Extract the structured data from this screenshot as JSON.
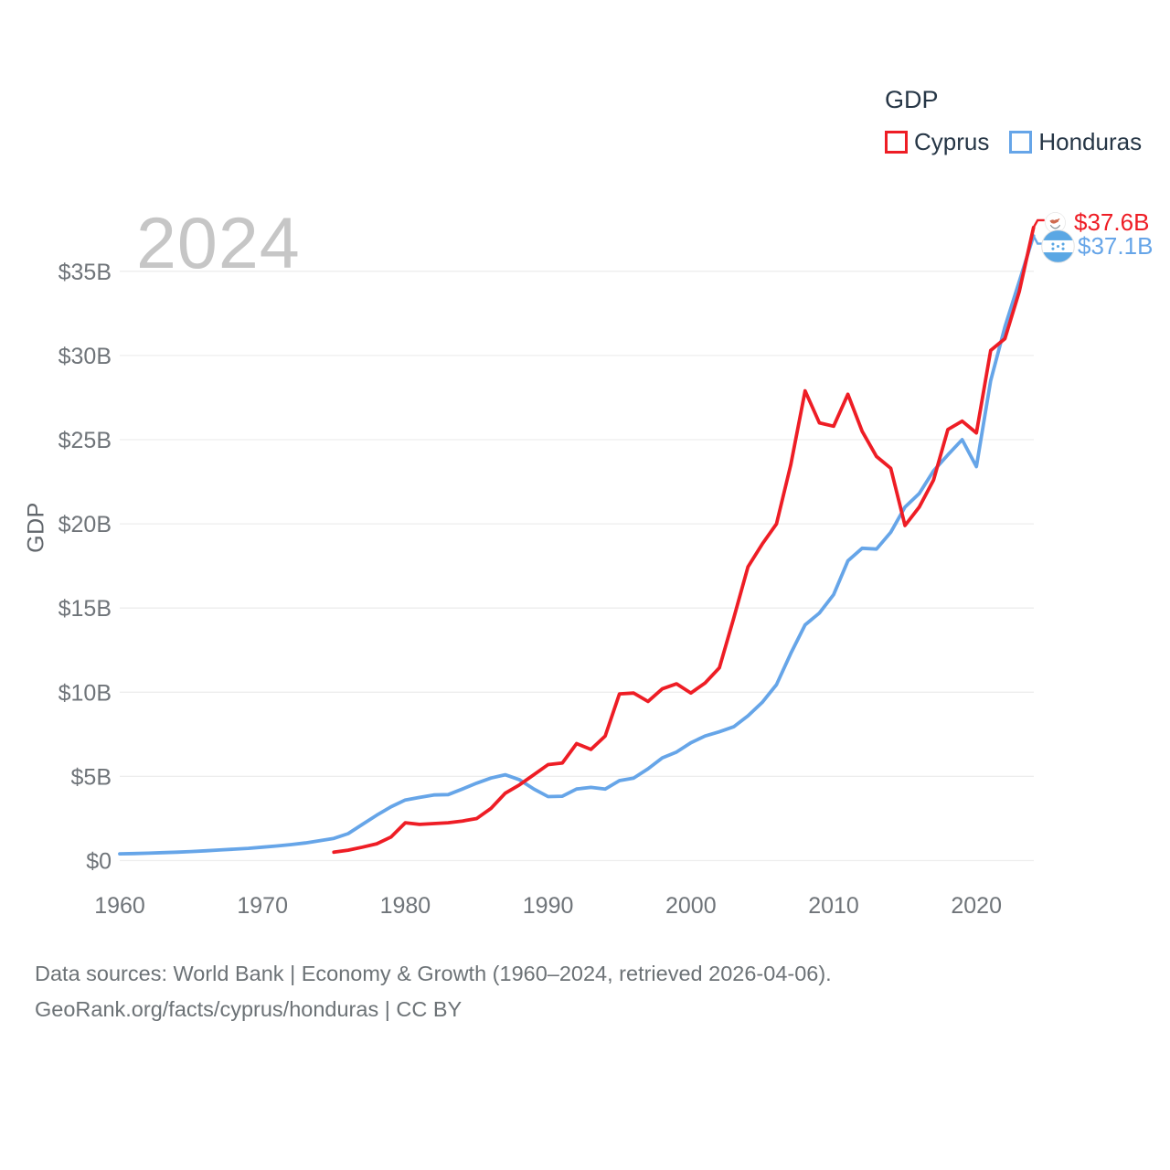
{
  "legend": {
    "title": "GDP",
    "items": [
      {
        "label": "Cyprus",
        "color": "#ee1d25"
      },
      {
        "label": "Honduras",
        "color": "#66a5e8"
      }
    ]
  },
  "watermark": "2024",
  "end_labels": [
    {
      "series": "Cyprus",
      "value": "$37.6B",
      "color": "#ee1d25",
      "flag": "cyprus-flag"
    },
    {
      "series": "Honduras",
      "value": "$37.1B",
      "color": "#66a5e8",
      "flag": "honduras-flag"
    }
  ],
  "footer": {
    "line1": "Data sources: World Bank | Economy & Growth (1960–2024, retrieved 2026-04-06).",
    "line2": "GeoRank.org/facts/cyprus/honduras | CC BY"
  },
  "chart_data": {
    "type": "line",
    "title": "GDP",
    "xlabel": "",
    "ylabel": "GDP",
    "unit": "billions USD",
    "xlim": [
      1960,
      2024
    ],
    "ylim": [
      0,
      38.5
    ],
    "grid": "horizontal",
    "legend_position": "top-right",
    "x_ticks": [
      1960,
      1970,
      1980,
      1990,
      2000,
      2010,
      2020
    ],
    "y_ticks": [
      {
        "value": 0,
        "label": "$0"
      },
      {
        "value": 5,
        "label": "$5B"
      },
      {
        "value": 10,
        "label": "$10B"
      },
      {
        "value": 15,
        "label": "$15B"
      },
      {
        "value": 20,
        "label": "$20B"
      },
      {
        "value": 25,
        "label": "$25B"
      },
      {
        "value": 30,
        "label": "$30B"
      },
      {
        "value": 35,
        "label": "$35B"
      }
    ],
    "style": {
      "grid_color": "#ededed",
      "tick_color": "#6f7479",
      "line_width": 3.8
    },
    "series": [
      {
        "name": "Honduras",
        "color": "#66a5e8",
        "start_year": 1960,
        "end_value_label": "$37.1B",
        "values": [
          0.4,
          0.42,
          0.44,
          0.47,
          0.5,
          0.54,
          0.58,
          0.63,
          0.68,
          0.73,
          0.8,
          0.87,
          0.95,
          1.05,
          1.18,
          1.32,
          1.6,
          2.15,
          2.7,
          3.2,
          3.6,
          3.75,
          3.9,
          3.92,
          4.25,
          4.6,
          4.9,
          5.1,
          4.8,
          4.25,
          3.8,
          3.82,
          4.25,
          4.35,
          4.25,
          4.75,
          4.9,
          5.45,
          6.1,
          6.45,
          7.0,
          7.4,
          7.65,
          7.95,
          8.6,
          9.4,
          10.45,
          12.3,
          14.0,
          14.7,
          15.8,
          17.8,
          18.55,
          18.5,
          19.5,
          21.0,
          21.8,
          23.15,
          24.1,
          25.0,
          23.4,
          28.5,
          31.7,
          34.4,
          37.1
        ]
      },
      {
        "name": "Cyprus",
        "color": "#ee1d25",
        "start_year": 1975,
        "end_value_label": "$37.6B",
        "values": [
          0.5,
          0.62,
          0.8,
          1.0,
          1.4,
          2.25,
          2.15,
          2.2,
          2.25,
          2.35,
          2.5,
          3.1,
          4.0,
          4.5,
          5.1,
          5.7,
          5.8,
          6.95,
          6.6,
          7.4,
          9.9,
          9.95,
          9.45,
          10.2,
          10.5,
          9.95,
          10.55,
          11.45,
          14.4,
          17.45,
          18.8,
          20.0,
          23.5,
          27.9,
          26.0,
          25.8,
          27.7,
          25.5,
          24.0,
          23.3,
          19.9,
          21.0,
          22.6,
          25.6,
          26.1,
          25.4,
          30.3,
          31.0,
          33.8,
          37.6
        ]
      }
    ]
  }
}
